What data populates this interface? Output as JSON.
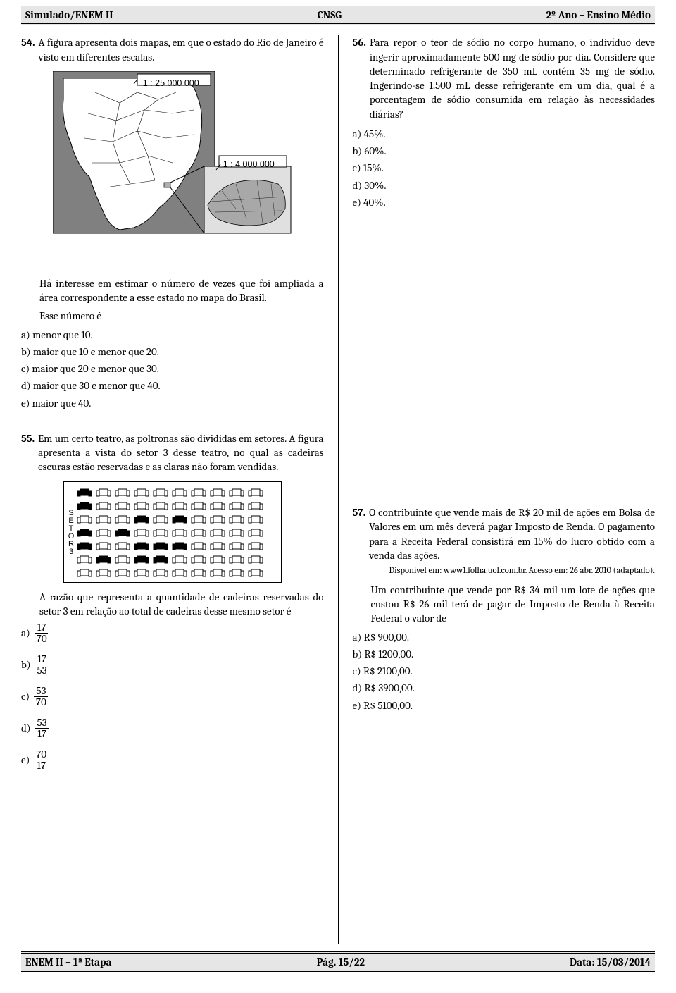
{
  "header": {
    "left": "Simulado/ENEM II",
    "center": "CNSG",
    "right": "2º Ano – Ensino Médio"
  },
  "footer": {
    "left": "ENEM II – 1ª Etapa",
    "center": "Pág. 15/22",
    "right": "Data: 15/03/2014"
  },
  "q54": {
    "num": "54.",
    "text": "A figura apresenta dois mapas, em que o estado do Rio de Janeiro é visto em diferentes escalas.",
    "scale1": "1 : 25 000 000",
    "scale2": "1 : 4 000 000",
    "body1": "Há interesse em estimar o número de vezes que foi ampliada a área correspondente a esse estado no mapa do Brasil.",
    "body2": "Esse número é",
    "opts": {
      "a": "a) menor que 10.",
      "b": "b) maior que 10 e menor que 20.",
      "c": "c) maior que 20 e menor que 30.",
      "d": "d) maior que 30 e menor que 40.",
      "e": "e) maior que 40."
    }
  },
  "q55": {
    "num": "55.",
    "text": "Em um certo teatro, as poltronas são divididas em setores. A figura apresenta a vista do setor 3 desse teatro, no qual as cadeiras escuras estão reservadas e as claras não foram vendidas.",
    "sector_chars": [
      "S",
      "E",
      "T",
      "O",
      "R",
      " ",
      "3"
    ],
    "rows": [
      [
        1,
        0,
        0,
        0,
        0,
        0,
        0,
        0,
        0,
        0
      ],
      [
        1,
        0,
        0,
        0,
        0,
        0,
        0,
        0,
        0,
        0
      ],
      [
        0,
        0,
        0,
        1,
        0,
        1,
        0,
        0,
        0,
        0
      ],
      [
        1,
        0,
        1,
        0,
        0,
        0,
        0,
        0,
        0,
        0
      ],
      [
        1,
        0,
        0,
        1,
        1,
        1,
        0,
        0,
        0,
        0
      ],
      [
        0,
        1,
        0,
        1,
        1,
        0,
        0,
        0,
        0,
        0
      ],
      [
        0,
        0,
        0,
        0,
        0,
        0,
        0,
        0,
        0,
        0
      ]
    ],
    "body": "A razão que representa a quantidade de cadeiras reservadas do setor 3 em relação ao total de cadeiras desse mesmo setor é",
    "opts": {
      "a": {
        "letter": "a)",
        "num": "17",
        "den": "70"
      },
      "b": {
        "letter": "b)",
        "num": "17",
        "den": "53"
      },
      "c": {
        "letter": "c)",
        "num": "53",
        "den": "70"
      },
      "d": {
        "letter": "d)",
        "num": "53",
        "den": "17"
      },
      "e": {
        "letter": "e)",
        "num": "70",
        "den": "17"
      }
    }
  },
  "q56": {
    "num": "56.",
    "text": "Para repor o teor de sódio no corpo humano, o indivíduo deve ingerir aproximadamente 500 mg de sódio por dia. Considere que determinado refrigerante de 350 mL contém 35 mg de sódio. Ingerindo-se 1.500 mL desse refrigerante em um dia, qual é a porcentagem de sódio consumida em relação às necessidades diárias?",
    "opts": {
      "a": "a) 45%.",
      "b": "b) 60%.",
      "c": "c) 15%.",
      "d": "d) 30%.",
      "e": "e) 40%."
    }
  },
  "q57": {
    "num": "57.",
    "text": "O contribuinte que vende mais de R$ 20 mil de ações em Bolsa de Valores em um mês deverá pagar Imposto de Renda. O pagamento para a Receita Federal consistirá em 15% do lucro obtido com a venda das ações.",
    "source": "Disponível em: www1.folha.uol.com.br. Acesso em: 26 abr. 2010 (adaptado).",
    "body": "Um contribuinte que vende por R$ 34 mil um lote de ações que custou R$ 26 mil terá de pagar de Imposto de Renda à Receita Federal o valor de",
    "opts": {
      "a": "a) R$ 900,00.",
      "b": "b) R$ 1200,00.",
      "c": "c) R$ 2100,00.",
      "d": "d) R$ 3900,00.",
      "e": "e) R$ 5100,00."
    }
  }
}
